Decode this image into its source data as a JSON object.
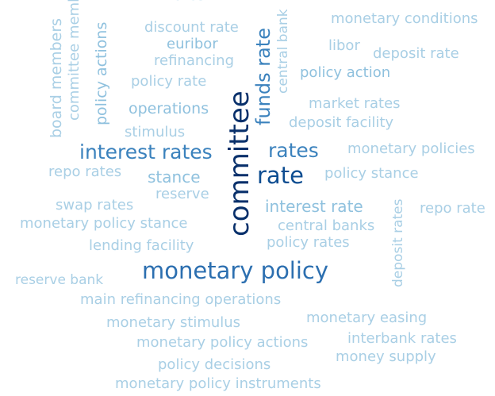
{
  "words": [
    "committee",
    "monetary policy",
    "rate",
    "rates",
    "interest rates",
    "funds rate",
    "central bank",
    "board members",
    "committee members",
    "policy actions",
    "discount rate",
    "euribor",
    "refinancing",
    "policy rate",
    "operations",
    "stimulus",
    "stance",
    "reserve",
    "repo rates",
    "swap rates",
    "monetary policy stance",
    "lending facility",
    "reserve bank",
    "main refinancing operations",
    "monetary stimulus",
    "monetary policy actions",
    "policy decisions",
    "monetary policy instruments",
    "monetary conditions",
    "libor",
    "deposit rate",
    "policy action",
    "market rates",
    "deposit facility",
    "monetary policies",
    "policy stance",
    "interest rate",
    "central banks",
    "policy rates",
    "deposit rates",
    "repo rate",
    "monetary easing",
    "interbank rates",
    "money supply"
  ]
}
